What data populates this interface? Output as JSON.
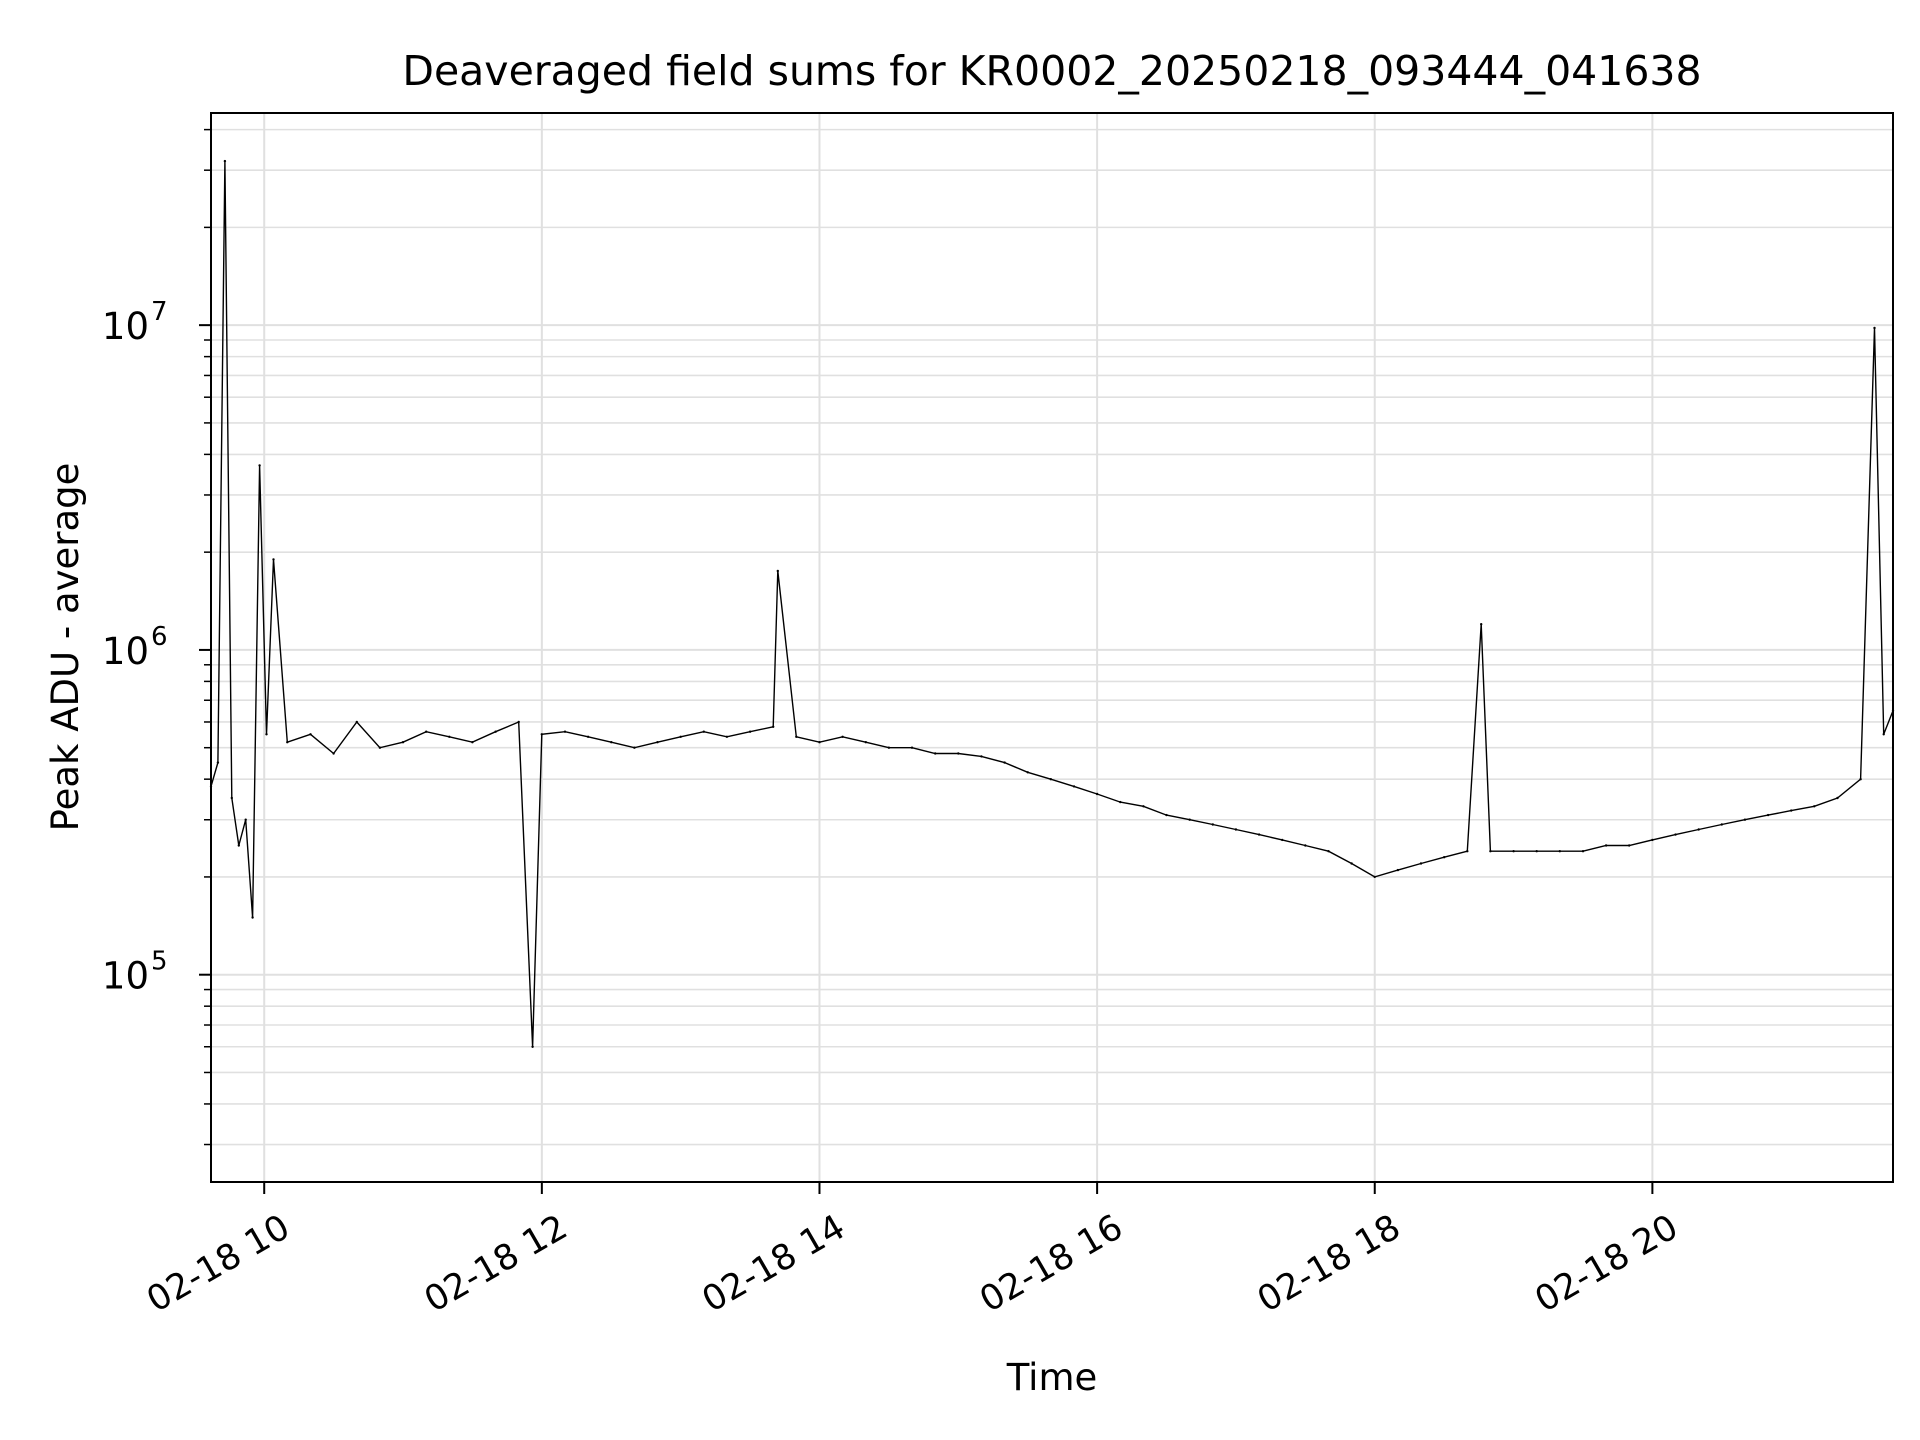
{
  "chart_data": {
    "type": "line",
    "title": "Deaveraged field sums for KR0002_20250218_093444_041638",
    "xlabel": "Time",
    "ylabel": "Peak ADU - average",
    "yscale": "log",
    "ylim": [
      23000,
      45000000
    ],
    "xlim": [
      "02-18 09:37",
      "02-18 21:44"
    ],
    "grid": true,
    "line_color": "#000000",
    "grid_color": "#e0e0e0",
    "x_ticks": [
      {
        "label": "02-18 10",
        "time": "02-18 10:00"
      },
      {
        "label": "02-18 12",
        "time": "02-18 12:00"
      },
      {
        "label": "02-18 14",
        "time": "02-18 14:00"
      },
      {
        "label": "02-18 16",
        "time": "02-18 16:00"
      },
      {
        "label": "02-18 18",
        "time": "02-18 18:00"
      },
      {
        "label": "02-18 20",
        "time": "02-18 20:00"
      }
    ],
    "y_ticks": [
      {
        "base": "10",
        "exp": "5",
        "value": 100000
      },
      {
        "base": "10",
        "exp": "6",
        "value": 1000000
      },
      {
        "base": "10",
        "exp": "7",
        "value": 10000000
      }
    ],
    "series": [
      {
        "points": [
          [
            "02-18 09:37",
            380000
          ],
          [
            "02-18 09:40",
            450000
          ],
          [
            "02-18 09:43",
            32000000
          ],
          [
            "02-18 09:46",
            350000
          ],
          [
            "02-18 09:49",
            250000
          ],
          [
            "02-18 09:52",
            300000
          ],
          [
            "02-18 09:55",
            150000
          ],
          [
            "02-18 09:58",
            3700000
          ],
          [
            "02-18 10:01",
            550000
          ],
          [
            "02-18 10:04",
            1900000
          ],
          [
            "02-18 10:10",
            520000
          ],
          [
            "02-18 10:20",
            550000
          ],
          [
            "02-18 10:30",
            480000
          ],
          [
            "02-18 10:40",
            600000
          ],
          [
            "02-18 10:50",
            500000
          ],
          [
            "02-18 11:00",
            520000
          ],
          [
            "02-18 11:10",
            560000
          ],
          [
            "02-18 11:20",
            540000
          ],
          [
            "02-18 11:30",
            520000
          ],
          [
            "02-18 11:40",
            560000
          ],
          [
            "02-18 11:50",
            600000
          ],
          [
            "02-18 11:56",
            60000
          ],
          [
            "02-18 12:00",
            550000
          ],
          [
            "02-18 12:10",
            560000
          ],
          [
            "02-18 12:20",
            540000
          ],
          [
            "02-18 12:30",
            520000
          ],
          [
            "02-18 12:40",
            500000
          ],
          [
            "02-18 12:50",
            520000
          ],
          [
            "02-18 13:00",
            540000
          ],
          [
            "02-18 13:10",
            560000
          ],
          [
            "02-18 13:20",
            540000
          ],
          [
            "02-18 13:30",
            560000
          ],
          [
            "02-18 13:40",
            580000
          ],
          [
            "02-18 13:42",
            1750000
          ],
          [
            "02-18 13:50",
            540000
          ],
          [
            "02-18 14:00",
            520000
          ],
          [
            "02-18 14:10",
            540000
          ],
          [
            "02-18 14:20",
            520000
          ],
          [
            "02-18 14:30",
            500000
          ],
          [
            "02-18 14:40",
            500000
          ],
          [
            "02-18 14:50",
            480000
          ],
          [
            "02-18 15:00",
            480000
          ],
          [
            "02-18 15:10",
            470000
          ],
          [
            "02-18 15:20",
            450000
          ],
          [
            "02-18 15:30",
            420000
          ],
          [
            "02-18 15:40",
            400000
          ],
          [
            "02-18 15:50",
            380000
          ],
          [
            "02-18 16:00",
            360000
          ],
          [
            "02-18 16:10",
            340000
          ],
          [
            "02-18 16:20",
            330000
          ],
          [
            "02-18 16:30",
            310000
          ],
          [
            "02-18 16:40",
            300000
          ],
          [
            "02-18 16:50",
            290000
          ],
          [
            "02-18 17:00",
            280000
          ],
          [
            "02-18 17:10",
            270000
          ],
          [
            "02-18 17:20",
            260000
          ],
          [
            "02-18 17:30",
            250000
          ],
          [
            "02-18 17:40",
            240000
          ],
          [
            "02-18 17:50",
            220000
          ],
          [
            "02-18 18:00",
            200000
          ],
          [
            "02-18 18:10",
            210000
          ],
          [
            "02-18 18:20",
            220000
          ],
          [
            "02-18 18:30",
            230000
          ],
          [
            "02-18 18:40",
            240000
          ],
          [
            "02-18 18:46",
            1200000
          ],
          [
            "02-18 18:50",
            240000
          ],
          [
            "02-18 19:00",
            240000
          ],
          [
            "02-18 19:10",
            240000
          ],
          [
            "02-18 19:20",
            240000
          ],
          [
            "02-18 19:30",
            240000
          ],
          [
            "02-18 19:40",
            250000
          ],
          [
            "02-18 19:50",
            250000
          ],
          [
            "02-18 20:00",
            260000
          ],
          [
            "02-18 20:10",
            270000
          ],
          [
            "02-18 20:20",
            280000
          ],
          [
            "02-18 20:30",
            290000
          ],
          [
            "02-18 20:40",
            300000
          ],
          [
            "02-18 20:50",
            310000
          ],
          [
            "02-18 21:00",
            320000
          ],
          [
            "02-18 21:10",
            330000
          ],
          [
            "02-18 21:20",
            350000
          ],
          [
            "02-18 21:30",
            400000
          ],
          [
            "02-18 21:36",
            9800000
          ],
          [
            "02-18 21:40",
            550000
          ],
          [
            "02-18 21:44",
            650000
          ]
        ]
      }
    ]
  }
}
